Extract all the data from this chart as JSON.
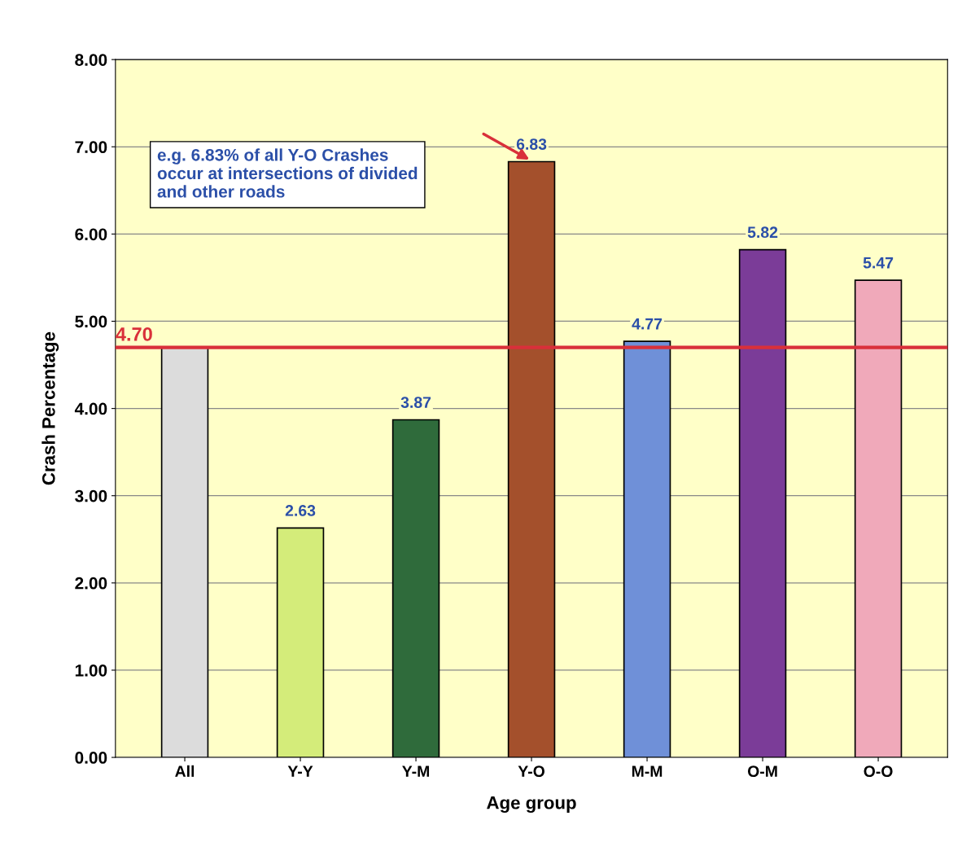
{
  "chart_data": {
    "type": "bar",
    "xlabel": "Age group",
    "ylabel": "Crash Percentage",
    "categories": [
      "All",
      "Y-Y",
      "Y-M",
      "Y-O",
      "M-M",
      "O-M",
      "O-O"
    ],
    "values": [
      4.7,
      2.63,
      3.87,
      6.83,
      4.77,
      5.82,
      5.47
    ],
    "colors": [
      "#dcdcdc",
      "#d4ec7a",
      "#2f6b3b",
      "#a4502c",
      "#6f90d8",
      "#7b3c98",
      "#f0a9ba"
    ],
    "value_labels": [
      null,
      "2.63",
      "3.87",
      "6.83",
      "4.77",
      "5.82",
      "5.47"
    ],
    "ylim": [
      0,
      8
    ],
    "yticks": [
      {
        "value": 0,
        "label": "0.00"
      },
      {
        "value": 1,
        "label": "1.00"
      },
      {
        "value": 2,
        "label": "2.00"
      },
      {
        "value": 3,
        "label": "3.00"
      },
      {
        "value": 4,
        "label": "4.00"
      },
      {
        "value": 5,
        "label": "5.00"
      },
      {
        "value": 6,
        "label": "6.00"
      },
      {
        "value": 7,
        "label": "7.00"
      },
      {
        "value": 8,
        "label": "8.00"
      }
    ],
    "grid": "y",
    "ref_lines": [
      {
        "axis": "y",
        "value": 4.7,
        "label": "4.70",
        "color": "#d9303a"
      }
    ],
    "annotations": [
      "e.g. 6.83% of all Y-O Crashes\noccur at intersections of divided\nand other roads"
    ]
  }
}
